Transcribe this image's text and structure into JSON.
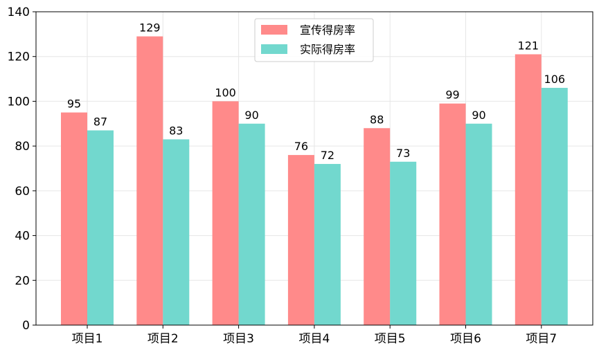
{
  "chart_data": {
    "type": "bar",
    "categories": [
      "项目1",
      "项目2",
      "项目3",
      "项目4",
      "项目5",
      "项目6",
      "项目7"
    ],
    "series": [
      {
        "name": "宣传得房率",
        "values": [
          95,
          129,
          100,
          76,
          88,
          99,
          121
        ],
        "color": "#FF8A8A"
      },
      {
        "name": "实际得房率",
        "values": [
          87,
          83,
          90,
          72,
          73,
          90,
          106
        ],
        "color": "#72D8CE"
      }
    ],
    "ylim": [
      0,
      140
    ],
    "yticks": [
      0,
      20,
      40,
      60,
      80,
      100,
      120,
      140
    ],
    "title": "",
    "xlabel": "",
    "ylabel": "",
    "grid": true,
    "legend_position": "top-center"
  }
}
